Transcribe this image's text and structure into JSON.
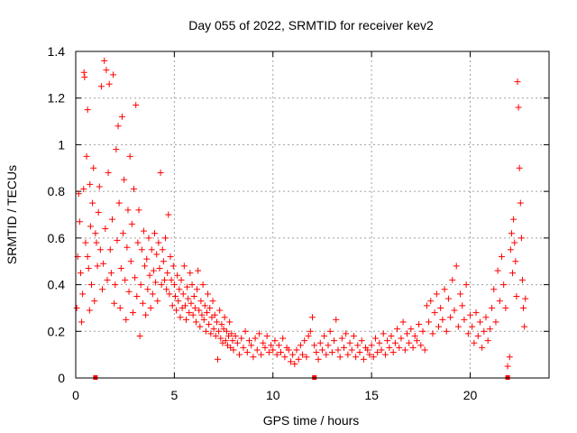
{
  "chart_data": {
    "type": "scatter",
    "title": "Day 055 of 2022, SRMTID for receiver kev2",
    "xlabel": "GPS time / hours",
    "ylabel": "SRMTID / TECUs",
    "xlim": [
      0,
      24
    ],
    "ylim": [
      0,
      1.4
    ],
    "xticks": [
      0,
      5,
      10,
      15,
      20
    ],
    "yticks": [
      0,
      0.2,
      0.4,
      0.6,
      0.8,
      1,
      1.2,
      1.4
    ],
    "xtick_labels": [
      "0",
      "5",
      "10",
      "15",
      "20"
    ],
    "ytick_labels": [
      "0",
      "0.2",
      "0.4",
      "0.6",
      "0.8",
      "1",
      "1.2",
      "1.4"
    ],
    "grid": true,
    "marker": "+",
    "color": "#ff0000",
    "baseline_markers_x": [
      1.0,
      12.1,
      21.9
    ],
    "series": [
      {
        "name": "SRMTID",
        "points": [
          [
            0.05,
            0.3
          ],
          [
            0.1,
            0.52
          ],
          [
            0.15,
            0.79
          ],
          [
            0.2,
            0.67
          ],
          [
            0.25,
            0.45
          ],
          [
            0.3,
            0.24
          ],
          [
            0.35,
            0.36
          ],
          [
            0.4,
            0.81
          ],
          [
            0.42,
            1.31
          ],
          [
            0.45,
            1.29
          ],
          [
            0.5,
            0.58
          ],
          [
            0.55,
            0.95
          ],
          [
            0.6,
            1.15
          ],
          [
            0.6,
            0.52
          ],
          [
            0.65,
            0.47
          ],
          [
            0.7,
            0.29
          ],
          [
            0.72,
            0.83
          ],
          [
            0.75,
            0.65
          ],
          [
            0.8,
            0.4
          ],
          [
            0.85,
            0.75
          ],
          [
            0.9,
            0.9
          ],
          [
            0.95,
            0.33
          ],
          [
            1.0,
            0.62
          ],
          [
            1.05,
            0.58
          ],
          [
            1.1,
            0.48
          ],
          [
            1.15,
            0.71
          ],
          [
            1.2,
            0.82
          ],
          [
            1.25,
            0.55
          ],
          [
            1.3,
            1.25
          ],
          [
            1.35,
            0.38
          ],
          [
            1.4,
            0.49
          ],
          [
            1.45,
            1.36
          ],
          [
            1.5,
            0.64
          ],
          [
            1.55,
            1.32
          ],
          [
            1.6,
            0.42
          ],
          [
            1.65,
            0.88
          ],
          [
            1.7,
            1.26
          ],
          [
            1.75,
            0.55
          ],
          [
            1.8,
            0.45
          ],
          [
            1.85,
            0.68
          ],
          [
            1.9,
            1.3
          ],
          [
            1.95,
            0.32
          ],
          [
            2.0,
            0.4
          ],
          [
            2.05,
            0.98
          ],
          [
            2.1,
            0.59
          ],
          [
            2.15,
            1.08
          ],
          [
            2.2,
            0.75
          ],
          [
            2.25,
            0.3
          ],
          [
            2.3,
            0.47
          ],
          [
            2.35,
            1.12
          ],
          [
            2.4,
            0.62
          ],
          [
            2.45,
            0.85
          ],
          [
            2.5,
            0.42
          ],
          [
            2.55,
            0.25
          ],
          [
            2.6,
            0.56
          ],
          [
            2.65,
            0.72
          ],
          [
            2.7,
            0.37
          ],
          [
            2.75,
            0.95
          ],
          [
            2.8,
            0.5
          ],
          [
            2.85,
            0.66
          ],
          [
            2.9,
            0.28
          ],
          [
            2.95,
            0.81
          ],
          [
            3.0,
            0.43
          ],
          [
            3.05,
            1.17
          ],
          [
            3.1,
            0.35
          ],
          [
            3.15,
            0.58
          ],
          [
            3.2,
            0.72
          ],
          [
            3.25,
            0.18
          ],
          [
            3.3,
            0.4
          ],
          [
            3.35,
            0.55
          ],
          [
            3.4,
            0.32
          ],
          [
            3.45,
            0.63
          ],
          [
            3.5,
            0.48
          ],
          [
            3.55,
            0.27
          ],
          [
            3.6,
            0.51
          ],
          [
            3.65,
            0.38
          ],
          [
            3.7,
            0.6
          ],
          [
            3.75,
            0.44
          ],
          [
            3.8,
            0.3
          ],
          [
            3.85,
            0.55
          ],
          [
            3.9,
            0.36
          ],
          [
            3.95,
            0.46
          ],
          [
            4.0,
            0.62
          ],
          [
            4.05,
            0.41
          ],
          [
            4.1,
            0.53
          ],
          [
            4.15,
            0.33
          ],
          [
            4.2,
            0.58
          ],
          [
            4.25,
            0.47
          ],
          [
            4.3,
            0.88
          ],
          [
            4.35,
            0.4
          ],
          [
            4.4,
            0.55
          ],
          [
            4.45,
            0.5
          ],
          [
            4.5,
            0.42
          ],
          [
            4.55,
            0.6
          ],
          [
            4.6,
            0.38
          ],
          [
            4.65,
            0.45
          ],
          [
            4.7,
            0.7
          ],
          [
            4.75,
            0.36
          ],
          [
            4.8,
            0.52
          ],
          [
            4.85,
            0.42
          ],
          [
            4.9,
            0.31
          ],
          [
            4.95,
            0.48
          ],
          [
            5.0,
            0.4
          ],
          [
            5.05,
            0.35
          ],
          [
            5.1,
            0.29
          ],
          [
            5.15,
            0.44
          ],
          [
            5.2,
            0.33
          ],
          [
            5.25,
            0.38
          ],
          [
            5.3,
            0.26
          ],
          [
            5.35,
            0.42
          ],
          [
            5.4,
            0.3
          ],
          [
            5.45,
            0.36
          ],
          [
            5.5,
            0.48
          ],
          [
            5.55,
            0.31
          ],
          [
            5.6,
            0.25
          ],
          [
            5.65,
            0.39
          ],
          [
            5.7,
            0.34
          ],
          [
            5.75,
            0.28
          ],
          [
            5.8,
            0.45
          ],
          [
            5.85,
            0.32
          ],
          [
            5.9,
            0.4
          ],
          [
            5.95,
            0.27
          ],
          [
            6.0,
            0.35
          ],
          [
            6.05,
            0.3
          ],
          [
            6.1,
            0.24
          ],
          [
            6.15,
            0.38
          ],
          [
            6.2,
            0.46
          ],
          [
            6.25,
            0.29
          ],
          [
            6.3,
            0.22
          ],
          [
            6.35,
            0.33
          ],
          [
            6.4,
            0.27
          ],
          [
            6.45,
            0.4
          ],
          [
            6.5,
            0.25
          ],
          [
            6.55,
            0.31
          ],
          [
            6.6,
            0.2
          ],
          [
            6.65,
            0.28
          ],
          [
            6.7,
            0.36
          ],
          [
            6.75,
            0.23
          ],
          [
            6.8,
            0.3
          ],
          [
            6.85,
            0.19
          ],
          [
            6.9,
            0.26
          ],
          [
            6.95,
            0.33
          ],
          [
            7.0,
            0.21
          ],
          [
            7.05,
            0.27
          ],
          [
            7.1,
            0.18
          ],
          [
            7.15,
            0.24
          ],
          [
            7.2,
            0.08
          ],
          [
            7.25,
            0.2
          ],
          [
            7.3,
            0.29
          ],
          [
            7.35,
            0.17
          ],
          [
            7.4,
            0.23
          ],
          [
            7.45,
            0.15
          ],
          [
            7.5,
            0.21
          ],
          [
            7.55,
            0.26
          ],
          [
            7.6,
            0.16
          ],
          [
            7.65,
            0.2
          ],
          [
            7.7,
            0.14
          ],
          [
            7.75,
            0.18
          ],
          [
            7.8,
            0.24
          ],
          [
            7.85,
            0.13
          ],
          [
            7.9,
            0.19
          ],
          [
            7.95,
            0.16
          ],
          [
            8.0,
            0.12
          ],
          [
            8.1,
            0.18
          ],
          [
            8.2,
            0.15
          ],
          [
            8.3,
            0.1
          ],
          [
            8.4,
            0.17
          ],
          [
            8.5,
            0.13
          ],
          [
            8.6,
            0.2
          ],
          [
            8.7,
            0.11
          ],
          [
            8.8,
            0.16
          ],
          [
            8.9,
            0.14
          ],
          [
            9.0,
            0.09
          ],
          [
            9.1,
            0.17
          ],
          [
            9.2,
            0.12
          ],
          [
            9.3,
            0.19
          ],
          [
            9.4,
            0.1
          ],
          [
            9.5,
            0.15
          ],
          [
            9.6,
            0.13
          ],
          [
            9.7,
            0.18
          ],
          [
            9.8,
            0.11
          ],
          [
            9.9,
            0.14
          ],
          [
            10.0,
            0.12
          ],
          [
            10.1,
            0.16
          ],
          [
            10.2,
            0.1
          ],
          [
            10.3,
            0.14
          ],
          [
            10.4,
            0.11
          ],
          [
            10.5,
            0.17
          ],
          [
            10.6,
            0.09
          ],
          [
            10.7,
            0.13
          ],
          [
            10.8,
            0.12
          ],
          [
            10.9,
            0.07
          ],
          [
            11.0,
            0.1
          ],
          [
            11.1,
            0.06
          ],
          [
            11.2,
            0.12
          ],
          [
            11.3,
            0.08
          ],
          [
            11.4,
            0.14
          ],
          [
            11.5,
            0.1
          ],
          [
            11.6,
            0.16
          ],
          [
            11.7,
            0.09
          ],
          [
            11.8,
            0.18
          ],
          [
            11.9,
            0.2
          ],
          [
            12.0,
            0.26
          ],
          [
            12.1,
            0.14
          ],
          [
            12.2,
            0.11
          ],
          [
            12.3,
            0.08
          ],
          [
            12.4,
            0.15
          ],
          [
            12.5,
            0.12
          ],
          [
            12.6,
            0.18
          ],
          [
            12.7,
            0.1
          ],
          [
            12.8,
            0.14
          ],
          [
            12.9,
            0.2
          ],
          [
            13.0,
            0.11
          ],
          [
            13.1,
            0.16
          ],
          [
            13.2,
            0.25
          ],
          [
            13.3,
            0.12
          ],
          [
            13.4,
            0.09
          ],
          [
            13.5,
            0.17
          ],
          [
            13.6,
            0.13
          ],
          [
            13.7,
            0.19
          ],
          [
            13.8,
            0.1
          ],
          [
            13.9,
            0.15
          ],
          [
            14.0,
            0.12
          ],
          [
            14.1,
            0.18
          ],
          [
            14.2,
            0.09
          ],
          [
            14.3,
            0.14
          ],
          [
            14.4,
            0.11
          ],
          [
            14.5,
            0.16
          ],
          [
            14.6,
            0.08
          ],
          [
            14.7,
            0.13
          ],
          [
            14.8,
            0.12
          ],
          [
            14.9,
            0.1
          ],
          [
            15.0,
            0.14
          ],
          [
            15.1,
            0.09
          ],
          [
            15.2,
            0.17
          ],
          [
            15.3,
            0.11
          ],
          [
            15.4,
            0.15
          ],
          [
            15.5,
            0.12
          ],
          [
            15.6,
            0.19
          ],
          [
            15.7,
            0.1
          ],
          [
            15.8,
            0.16
          ],
          [
            15.9,
            0.13
          ],
          [
            16.0,
            0.18
          ],
          [
            16.1,
            0.11
          ],
          [
            16.2,
            0.15
          ],
          [
            16.3,
            0.21
          ],
          [
            16.4,
            0.13
          ],
          [
            16.5,
            0.17
          ],
          [
            16.6,
            0.24
          ],
          [
            16.7,
            0.12
          ],
          [
            16.8,
            0.19
          ],
          [
            16.9,
            0.15
          ],
          [
            17.0,
            0.21
          ],
          [
            17.1,
            0.13
          ],
          [
            17.2,
            0.18
          ],
          [
            17.3,
            0.16
          ],
          [
            17.4,
            0.23
          ],
          [
            17.5,
            0.14
          ],
          [
            17.6,
            0.2
          ],
          [
            17.7,
            0.12
          ],
          [
            17.8,
            0.31
          ],
          [
            17.9,
            0.24
          ],
          [
            18.0,
            0.33
          ],
          [
            18.1,
            0.19
          ],
          [
            18.2,
            0.28
          ],
          [
            18.3,
            0.36
          ],
          [
            18.4,
            0.22
          ],
          [
            18.5,
            0.3
          ],
          [
            18.6,
            0.25
          ],
          [
            18.7,
            0.38
          ],
          [
            18.8,
            0.2
          ],
          [
            18.9,
            0.34
          ],
          [
            19.0,
            0.26
          ],
          [
            19.1,
            0.42
          ],
          [
            19.2,
            0.29
          ],
          [
            19.3,
            0.48
          ],
          [
            19.4,
            0.22
          ],
          [
            19.5,
            0.36
          ],
          [
            19.6,
            0.31
          ],
          [
            19.7,
            0.25
          ],
          [
            19.8,
            0.4
          ],
          [
            19.9,
            0.19
          ],
          [
            20.0,
            0.27
          ],
          [
            20.1,
            0.22
          ],
          [
            20.2,
            0.15
          ],
          [
            20.3,
            0.28
          ],
          [
            20.4,
            0.18
          ],
          [
            20.5,
            0.24
          ],
          [
            20.6,
            0.13
          ],
          [
            20.7,
            0.2
          ],
          [
            20.8,
            0.26
          ],
          [
            20.9,
            0.16
          ],
          [
            21.0,
            0.21
          ],
          [
            21.1,
            0.3
          ],
          [
            21.2,
            0.38
          ],
          [
            21.3,
            0.24
          ],
          [
            21.4,
            0.46
          ],
          [
            21.5,
            0.33
          ],
          [
            21.6,
            0.52
          ],
          [
            21.7,
            0.4
          ],
          [
            21.8,
            0.3
          ],
          [
            21.9,
            0.05
          ],
          [
            22.0,
            0.09
          ],
          [
            22.05,
            0.55
          ],
          [
            22.1,
            0.62
          ],
          [
            22.15,
            0.45
          ],
          [
            22.2,
            0.68
          ],
          [
            22.25,
            0.58
          ],
          [
            22.3,
            0.5
          ],
          [
            22.35,
            0.35
          ],
          [
            22.4,
            1.27
          ],
          [
            22.45,
            1.16
          ],
          [
            22.5,
            0.9
          ],
          [
            22.55,
            0.75
          ],
          [
            22.6,
            0.6
          ],
          [
            22.65,
            0.42
          ],
          [
            22.7,
            0.3
          ],
          [
            22.75,
            0.22
          ],
          [
            22.8,
            0.34
          ]
        ]
      }
    ]
  }
}
